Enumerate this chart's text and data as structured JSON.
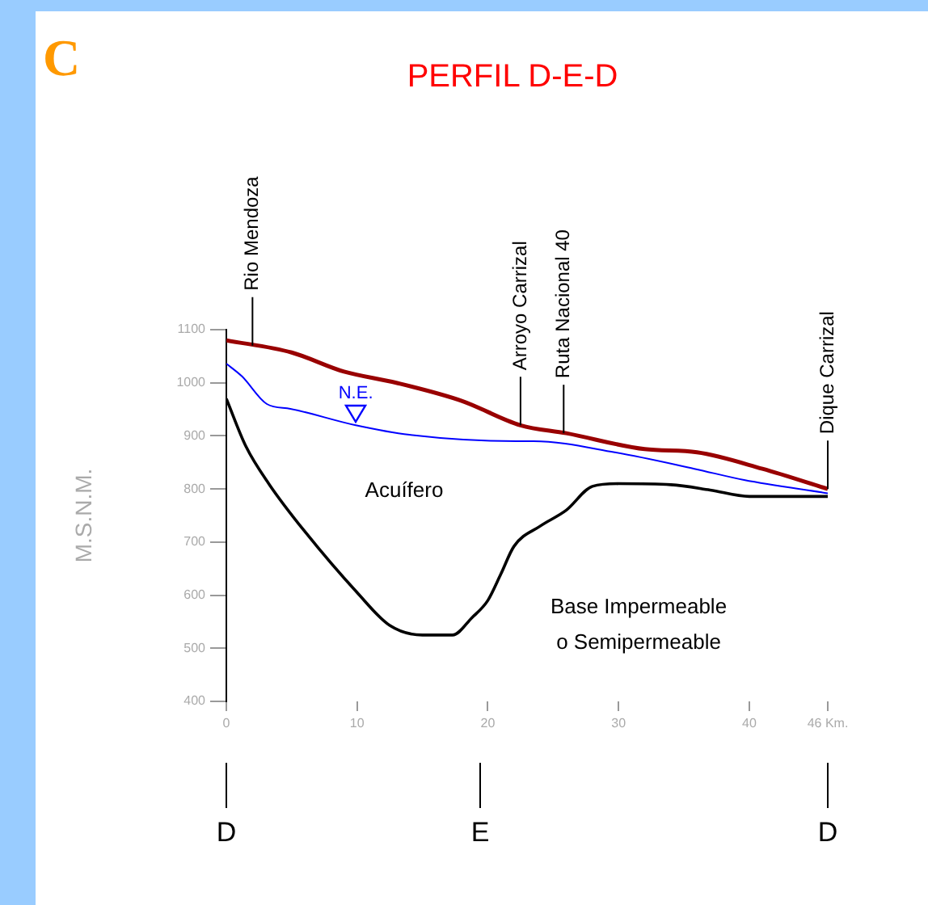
{
  "chart_data": {
    "type": "line",
    "title": "PERFIL D-E-D",
    "ylabel": "M.S.N.M.",
    "xlim": [
      0,
      46
    ],
    "xticks": [
      0,
      10,
      20,
      30,
      40,
      {
        "value": 46,
        "label": "46 Km."
      }
    ],
    "ylim": [
      400,
      1100
    ],
    "yticks": [
      400,
      500,
      600,
      700,
      800,
      900,
      1000,
      1100
    ],
    "grid": false,
    "legend": false,
    "marker": "none",
    "line_style": "solid",
    "series": [
      {
        "color": "#990000",
        "x": [
          0,
          5,
          9,
          13,
          18,
          22.5,
          26,
          32,
          36,
          41,
          46
        ],
        "values": [
          1080,
          1057,
          1021,
          1000,
          966,
          920,
          905,
          875,
          869,
          838,
          800
        ]
      },
      {
        "name": "N.E.",
        "color": "#0000ff",
        "x": [
          0,
          1.2,
          3.1,
          4.9,
          9.9,
          14,
          22.2,
          23.5,
          29.7,
          35.8,
          39.6,
          46
        ],
        "values": [
          1036,
          1012,
          960,
          951,
          920,
          902,
          890,
          890,
          869,
          838,
          817,
          792
        ]
      },
      {
        "color": "#000000",
        "x": [
          0,
          1.5,
          3.3,
          6,
          10,
          12.5,
          15,
          17.3,
          18.8,
          20,
          21,
          22,
          24,
          26,
          28,
          30,
          34,
          37,
          40,
          46
        ],
        "values": [
          970,
          880,
          808,
          720,
          605,
          543,
          525,
          525,
          558,
          590,
          640,
          692,
          730,
          760,
          805,
          810,
          808,
          798,
          786,
          786
        ]
      }
    ],
    "annotations": [
      "C",
      "Acuífero",
      "Base Impermeable\no Semipermeable",
      {
        "text": "Rio Mendoza",
        "x": 2,
        "y": 1070
      },
      {
        "text": "Arroyo Carrizal",
        "x": 22.5,
        "y": 920
      },
      {
        "text": "Ruta Nacional 40",
        "x": 25.8,
        "y": 905
      },
      {
        "text": "Dique Carrizal",
        "x": 46,
        "y": 800
      },
      "D",
      "E",
      "D"
    ]
  }
}
